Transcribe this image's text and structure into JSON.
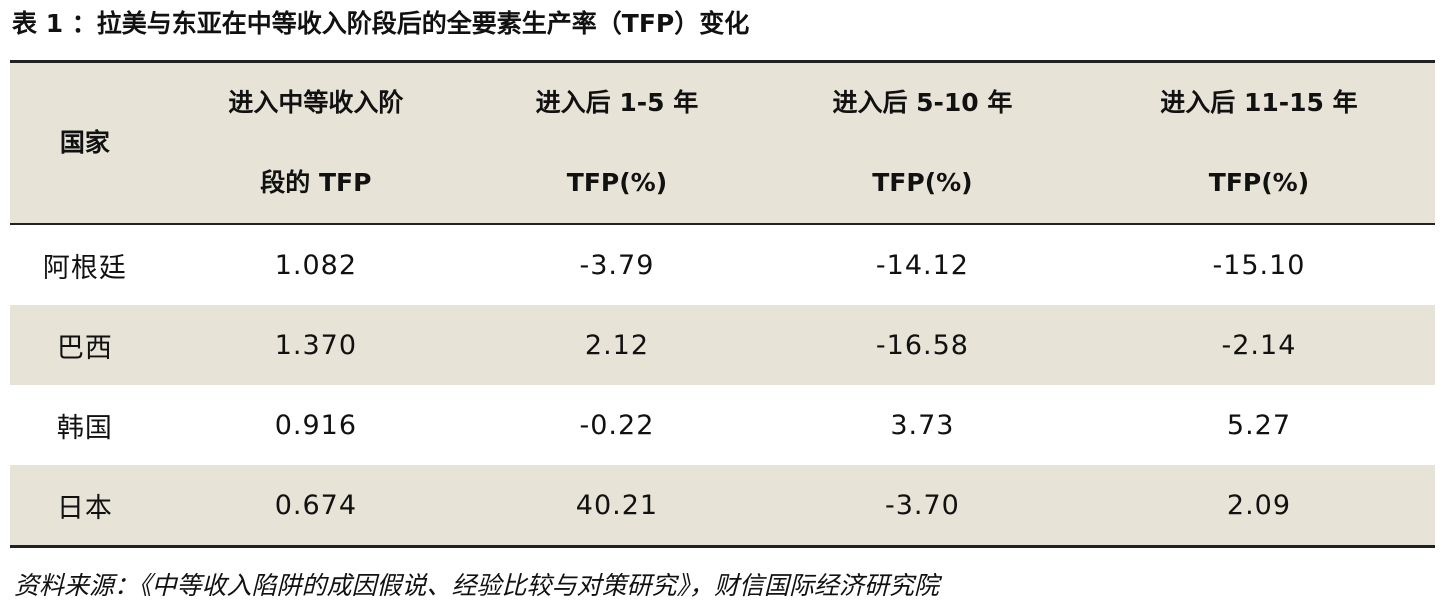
{
  "title": "表 1 ：拉美与东亚在中等收入阶段后的全要素生产率（TFP）变化",
  "table": {
    "headers": [
      [
        "国家"
      ],
      [
        "进入中等收入阶",
        "段的 TFP"
      ],
      [
        "进入后 1-5 年",
        "TFP(%)"
      ],
      [
        "进入后 5-10 年",
        "TFP(%)"
      ],
      [
        "进入后 11-15 年",
        "TFP(%)"
      ]
    ],
    "rows": [
      [
        "阿根廷",
        "1.082",
        "-3.79",
        "-14.12",
        "-15.10"
      ],
      [
        "巴西",
        "1.370",
        "2.12",
        "-16.58",
        "-2.14"
      ],
      [
        "韩国",
        "0.916",
        "-0.22",
        "3.73",
        "5.27"
      ],
      [
        "日本",
        "0.674",
        "40.21",
        "-3.70",
        "2.09"
      ]
    ]
  },
  "source": "资料来源：《中等收入陷阱的成因假说、经验比较与对策研究》，财信国际经济研究院"
}
